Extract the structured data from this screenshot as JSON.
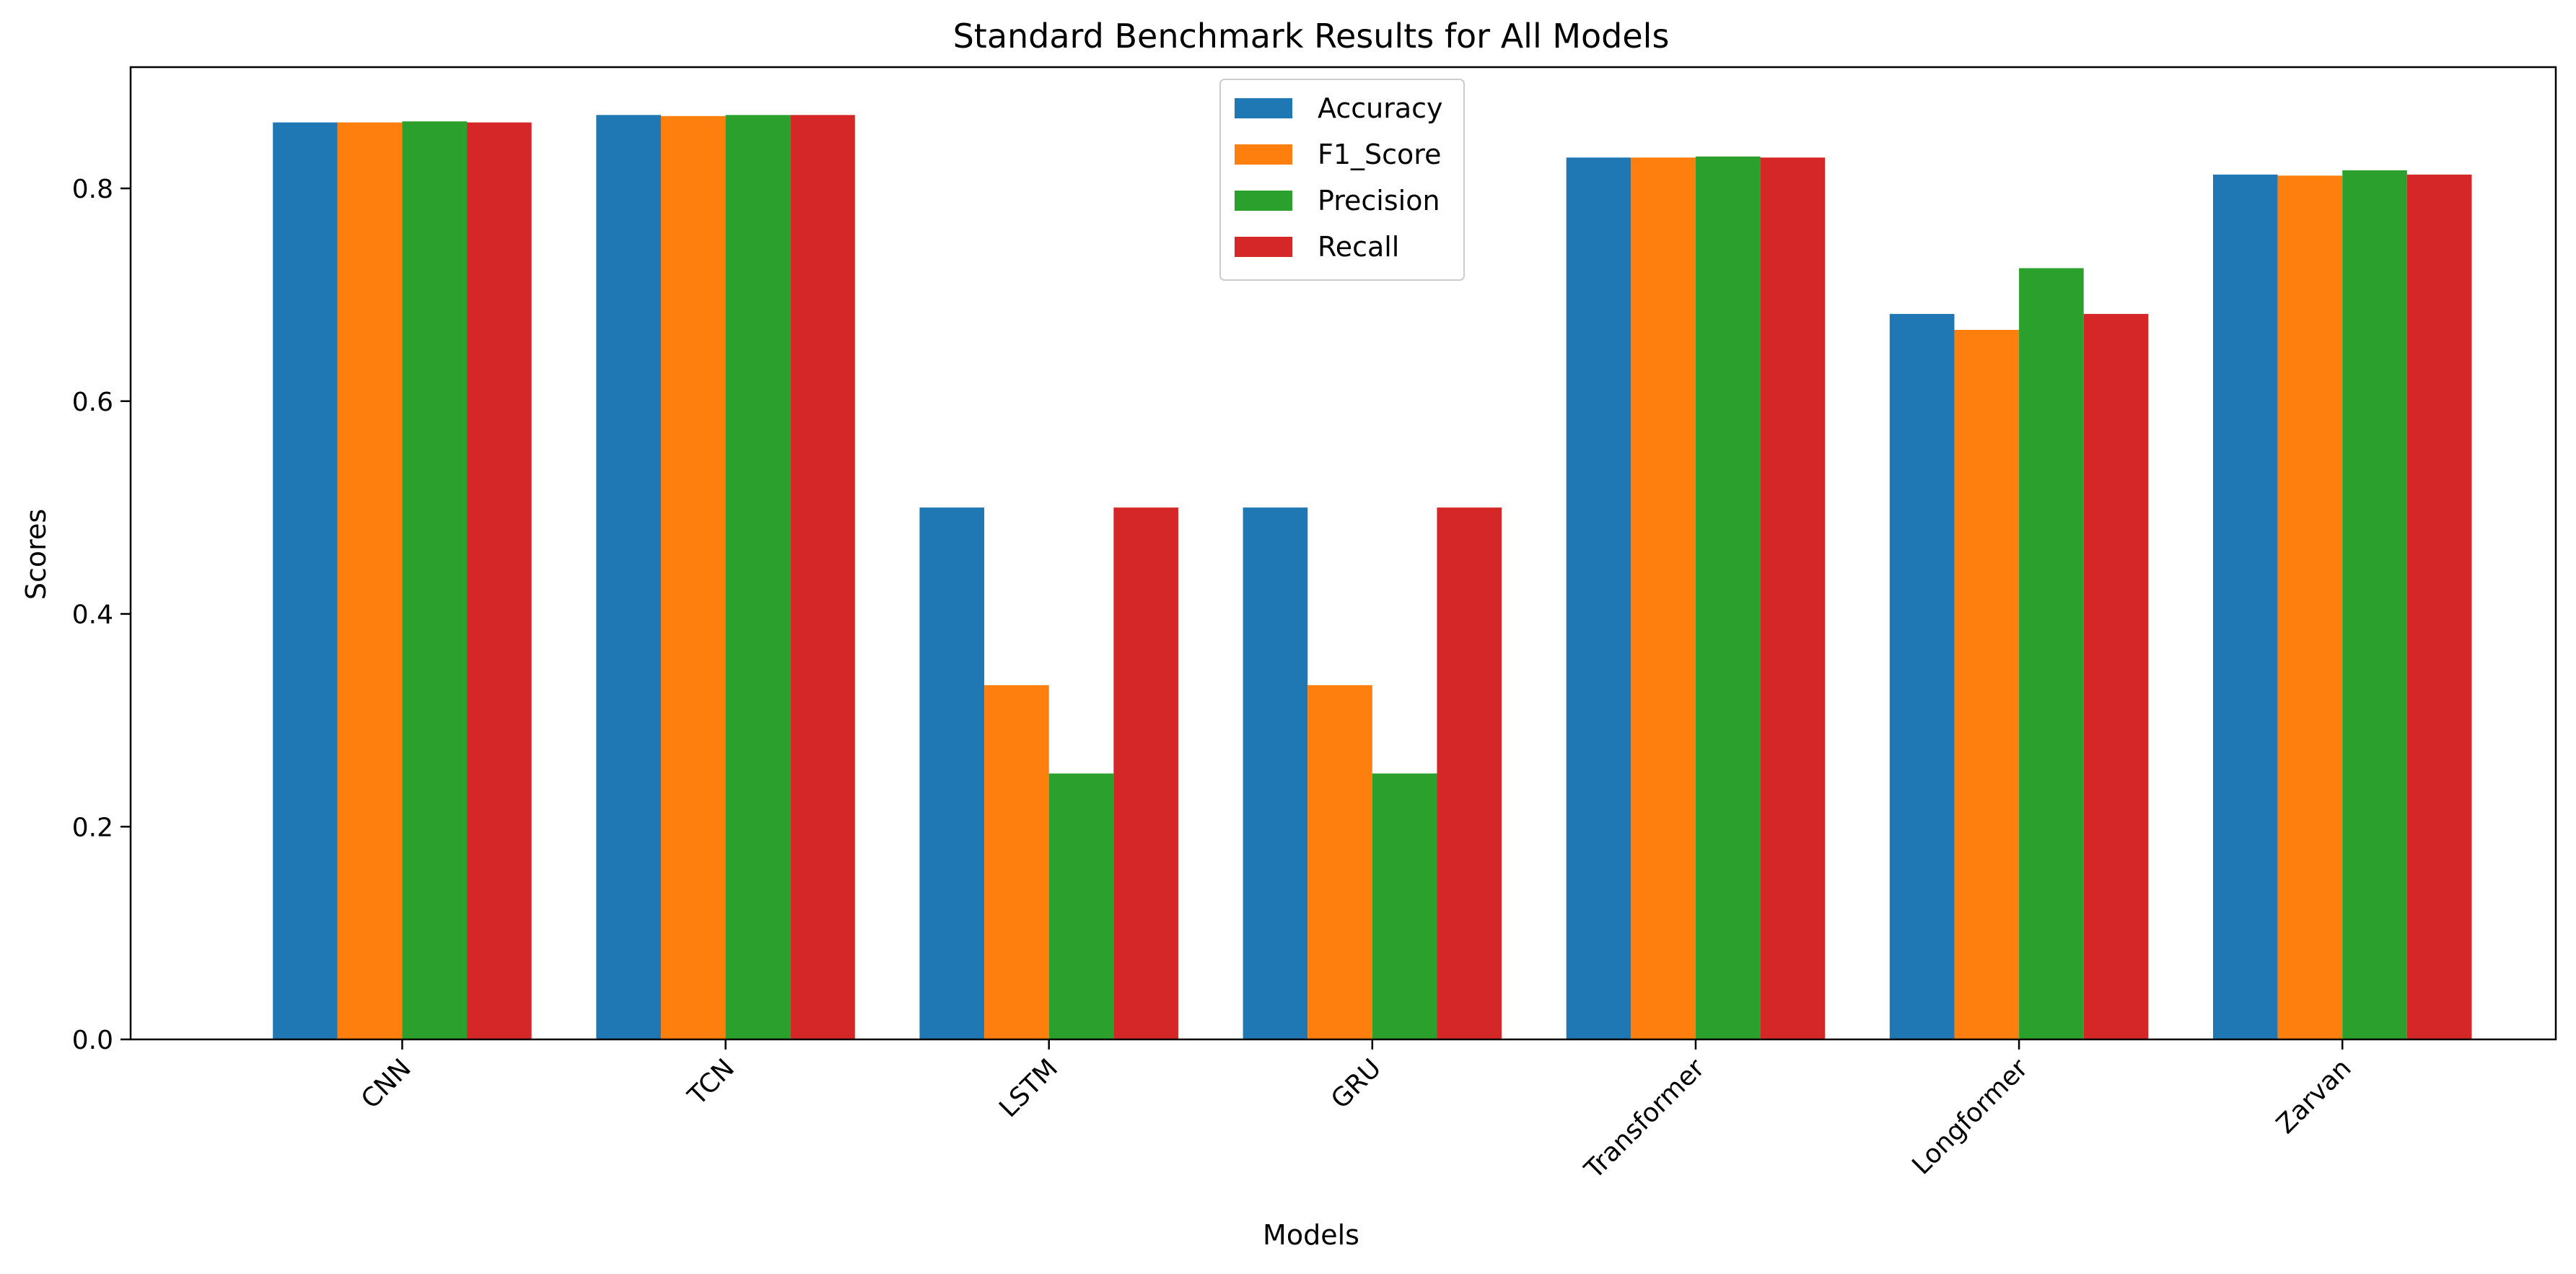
{
  "chart_data": {
    "type": "bar",
    "title": "Standard Benchmark Results for All Models",
    "xlabel": "Models",
    "ylabel": "Scores",
    "categories": [
      "CNN",
      "TCN",
      "LSTM",
      "GRU",
      "Transformer",
      "Longformer",
      "Zarvan"
    ],
    "series": [
      {
        "name": "Accuracy",
        "color": "#1f77b4",
        "values": [
          0.862,
          0.869,
          0.5,
          0.5,
          0.829,
          0.682,
          0.813
        ]
      },
      {
        "name": "F1_Score",
        "color": "#ff7f0e",
        "values": [
          0.862,
          0.868,
          0.333,
          0.333,
          0.829,
          0.667,
          0.812
        ]
      },
      {
        "name": "Precision",
        "color": "#2ca02c",
        "values": [
          0.863,
          0.869,
          0.25,
          0.25,
          0.83,
          0.725,
          0.817
        ]
      },
      {
        "name": "Recall",
        "color": "#d62728",
        "values": [
          0.862,
          0.869,
          0.5,
          0.5,
          0.829,
          0.682,
          0.813
        ]
      }
    ],
    "ylim": [
      0,
      0.914
    ],
    "yticks": [
      0.0,
      0.2,
      0.4,
      0.6,
      0.8
    ],
    "ytick_labels": [
      "0.0",
      "0.2",
      "0.4",
      "0.6",
      "0.8"
    ],
    "xtick_rotation": -45,
    "grid": false,
    "legend_position": "top-center"
  }
}
